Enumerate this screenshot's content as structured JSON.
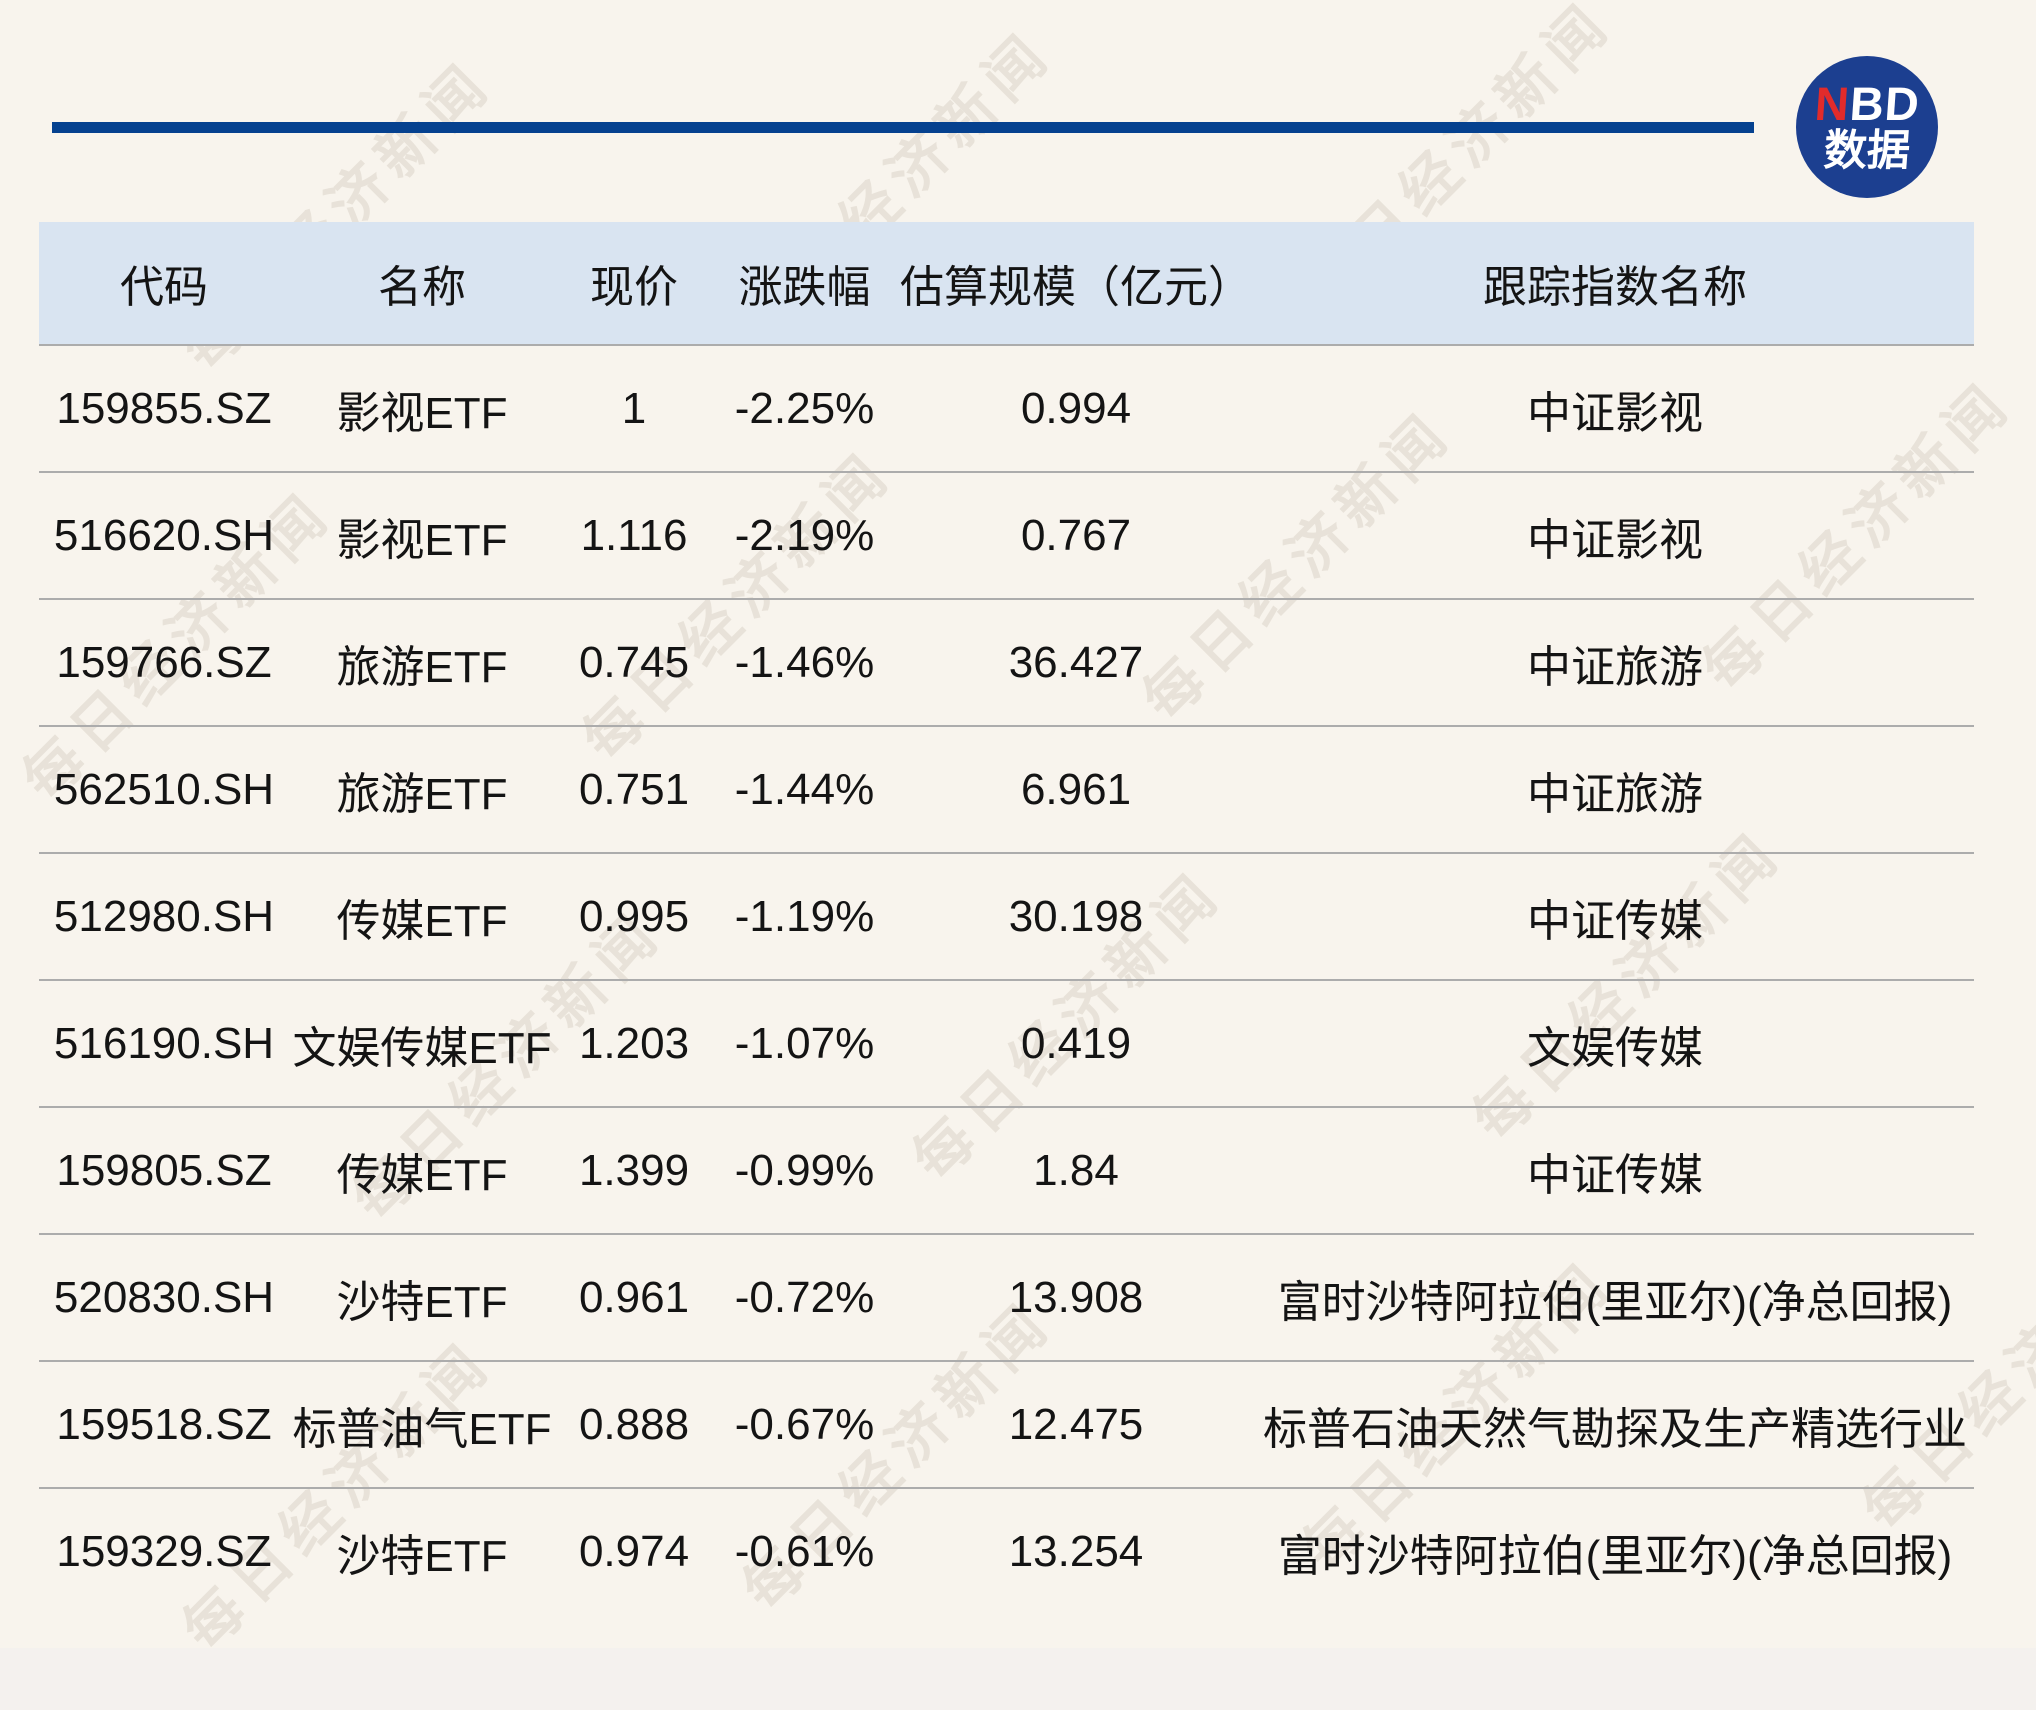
{
  "brand": {
    "logo_letter_n": "N",
    "logo_letters_bd": "BD",
    "logo_subtitle": "数据"
  },
  "watermark_text": "每日经济新闻",
  "colors": {
    "page_bg": "#F8F4ED",
    "accent_blue": "#05418F",
    "logo_blue": "#1C3F90",
    "logo_red": "#E12B2B",
    "header_bg": "#D9E4F1",
    "row_separator": "#ACACAC",
    "text": "#141414"
  },
  "chart_data": {
    "type": "table",
    "title": "",
    "columns": [
      "代码",
      "名称",
      "现价",
      "涨跌幅",
      "估算规模（亿元）",
      "跟踪指数名称"
    ],
    "rows": [
      [
        "159855.SZ",
        "影视ETF",
        "1",
        "-2.25%",
        "0.994",
        "中证影视"
      ],
      [
        "516620.SH",
        "影视ETF",
        "1.116",
        "-2.19%",
        "0.767",
        "中证影视"
      ],
      [
        "159766.SZ",
        "旅游ETF",
        "0.745",
        "-1.46%",
        "36.427",
        "中证旅游"
      ],
      [
        "562510.SH",
        "旅游ETF",
        "0.751",
        "-1.44%",
        "6.961",
        "中证旅游"
      ],
      [
        "512980.SH",
        "传媒ETF",
        "0.995",
        "-1.19%",
        "30.198",
        "中证传媒"
      ],
      [
        "516190.SH",
        "文娱传媒ETF",
        "1.203",
        "-1.07%",
        "0.419",
        "文娱传媒"
      ],
      [
        "159805.SZ",
        "传媒ETF",
        "1.399",
        "-0.99%",
        "1.84",
        "中证传媒"
      ],
      [
        "520830.SH",
        "沙特ETF",
        "0.961",
        "-0.72%",
        "13.908",
        "富时沙特阿拉伯(里亚尔)(净总回报)"
      ],
      [
        "159518.SZ",
        "标普油气ETF",
        "0.888",
        "-0.67%",
        "12.475",
        "标普石油天然气勘探及生产精选行业"
      ],
      [
        "159329.SZ",
        "沙特ETF",
        "0.974",
        "-0.61%",
        "13.254",
        "富时沙特阿拉伯(里亚尔)(净总回报)"
      ]
    ]
  }
}
